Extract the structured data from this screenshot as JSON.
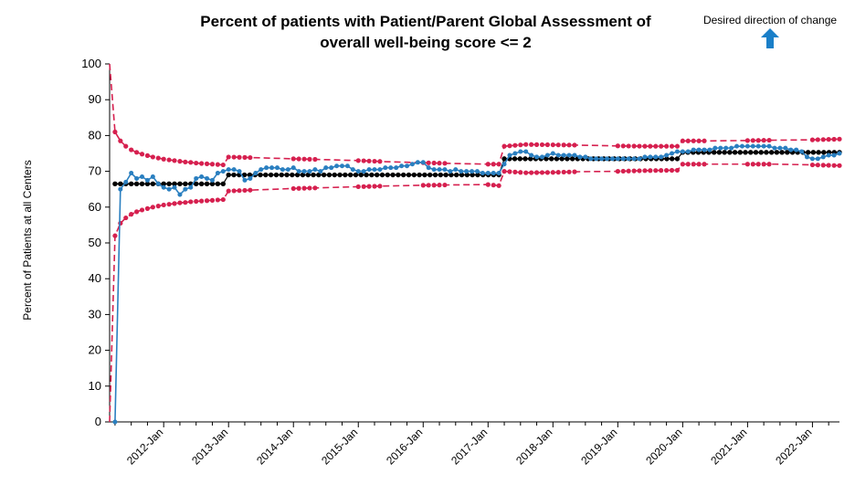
{
  "chart_data": {
    "type": "line",
    "title_lines": [
      "Percent of patients with Patient/Parent Global Assessment of",
      "overall well-being score <= 2"
    ],
    "title": "Percent of patients with Patient/Parent Global Assessment of overall well-being score <= 2",
    "ylabel": "Percent of Patients at all Centers",
    "xlabel": "",
    "ylim": [
      0,
      100
    ],
    "y_ticks": [
      0,
      10,
      20,
      30,
      40,
      50,
      60,
      70,
      80,
      90,
      100
    ],
    "x_range": [
      "2011-03",
      "2022-06"
    ],
    "x_tick_labels": [
      "2012-Jan",
      "2013-Jan",
      "2014-Jan",
      "2015-Jan",
      "2016-Jan",
      "2017-Jan",
      "2018-Jan",
      "2019-Jan",
      "2020-Jan",
      "2021-Jan",
      "2022-Jan"
    ],
    "legend": {
      "direction_text": "Desired direction of change",
      "direction": "up",
      "arrow_color": "#1a7fc8"
    },
    "colors": {
      "observed": "#2a7fc0",
      "center_line": "#000000",
      "limits": "#d6204f"
    },
    "series": [
      {
        "name": "",
        "role": "observed",
        "points": [
          [
            "2011-04",
            0
          ],
          [
            "2011-05",
            65
          ],
          [
            "2011-06",
            67
          ],
          [
            "2011-07",
            69.5
          ],
          [
            "2011-08",
            68
          ],
          [
            "2011-09",
            68.5
          ],
          [
            "2011-10",
            67.5
          ],
          [
            "2011-11",
            68.5
          ],
          [
            "2011-12",
            66.5
          ],
          [
            "2012-01",
            65.5
          ],
          [
            "2012-02",
            65
          ],
          [
            "2012-03",
            65.5
          ],
          [
            "2012-04",
            63.5
          ],
          [
            "2012-05",
            65
          ],
          [
            "2012-06",
            65.5
          ],
          [
            "2012-07",
            68
          ],
          [
            "2012-08",
            68.5
          ],
          [
            "2012-09",
            68
          ],
          [
            "2012-10",
            67.5
          ],
          [
            "2012-11",
            69.5
          ],
          [
            "2012-12",
            70
          ],
          [
            "2013-01",
            70.5
          ],
          [
            "2013-02",
            70.5
          ],
          [
            "2013-03",
            70
          ],
          [
            "2013-04",
            67.5
          ],
          [
            "2013-05",
            68
          ],
          [
            "2013-06",
            69.5
          ],
          [
            "2013-07",
            70.5
          ],
          [
            "2013-08",
            71
          ],
          [
            "2013-09",
            71
          ],
          [
            "2013-10",
            71
          ],
          [
            "2013-11",
            70.5
          ],
          [
            "2013-12",
            70.5
          ],
          [
            "2014-01",
            71
          ],
          [
            "2014-02",
            70
          ],
          [
            "2014-03",
            70
          ],
          [
            "2014-04",
            70
          ],
          [
            "2014-05",
            70.5
          ],
          [
            "2014-06",
            70
          ],
          [
            "2014-07",
            71
          ],
          [
            "2014-08",
            71
          ],
          [
            "2014-09",
            71.5
          ],
          [
            "2014-10",
            71.5
          ],
          [
            "2014-11",
            71.5
          ],
          [
            "2014-12",
            70.5
          ],
          [
            "2015-01",
            70
          ],
          [
            "2015-02",
            70
          ],
          [
            "2015-03",
            70.5
          ],
          [
            "2015-04",
            70.5
          ],
          [
            "2015-05",
            70.5
          ],
          [
            "2015-06",
            71
          ],
          [
            "2015-07",
            71
          ],
          [
            "2015-08",
            71
          ],
          [
            "2015-09",
            71.5
          ],
          [
            "2015-10",
            71.5
          ],
          [
            "2015-11",
            72
          ],
          [
            "2015-12",
            72.5
          ],
          [
            "2016-01",
            72.5
          ],
          [
            "2016-02",
            71
          ],
          [
            "2016-03",
            70.5
          ],
          [
            "2016-04",
            70.5
          ],
          [
            "2016-05",
            70.5
          ],
          [
            "2016-06",
            70
          ],
          [
            "2016-07",
            70.5
          ],
          [
            "2016-08",
            70
          ],
          [
            "2016-09",
            70
          ],
          [
            "2016-10",
            70
          ],
          [
            "2016-11",
            70
          ],
          [
            "2016-12",
            69.5
          ],
          [
            "2017-01",
            69.5
          ],
          [
            "2017-02",
            69.5
          ],
          [
            "2017-03",
            69.5
          ],
          [
            "2017-04",
            72
          ],
          [
            "2017-05",
            74.5
          ],
          [
            "2017-06",
            75
          ],
          [
            "2017-07",
            75.5
          ],
          [
            "2017-08",
            75.5
          ],
          [
            "2017-09",
            74.5
          ],
          [
            "2017-10",
            74
          ],
          [
            "2017-11",
            74
          ],
          [
            "2017-12",
            74.5
          ],
          [
            "2018-01",
            75
          ],
          [
            "2018-02",
            74.5
          ],
          [
            "2018-03",
            74.5
          ],
          [
            "2018-04",
            74.5
          ],
          [
            "2018-05",
            74.5
          ],
          [
            "2018-06",
            74
          ],
          [
            "2018-07",
            74
          ],
          [
            "2018-08",
            73.5
          ],
          [
            "2018-09",
            73.5
          ],
          [
            "2018-10",
            73.5
          ],
          [
            "2018-11",
            73.5
          ],
          [
            "2018-12",
            73.5
          ],
          [
            "2019-01",
            73.5
          ],
          [
            "2019-02",
            73.5
          ],
          [
            "2019-03",
            73.5
          ],
          [
            "2019-04",
            73.5
          ],
          [
            "2019-05",
            73.5
          ],
          [
            "2019-06",
            74
          ],
          [
            "2019-07",
            74
          ],
          [
            "2019-08",
            74
          ],
          [
            "2019-09",
            74
          ],
          [
            "2019-10",
            74.5
          ],
          [
            "2019-11",
            75
          ],
          [
            "2019-12",
            75.5
          ],
          [
            "2020-01",
            75.5
          ],
          [
            "2020-02",
            75.5
          ],
          [
            "2020-03",
            76
          ],
          [
            "2020-04",
            76
          ],
          [
            "2020-05",
            76
          ],
          [
            "2020-06",
            76
          ],
          [
            "2020-07",
            76.5
          ],
          [
            "2020-08",
            76.5
          ],
          [
            "2020-09",
            76.5
          ],
          [
            "2020-10",
            76.5
          ],
          [
            "2020-11",
            77
          ],
          [
            "2020-12",
            77
          ],
          [
            "2021-01",
            77
          ],
          [
            "2021-02",
            77
          ],
          [
            "2021-03",
            77
          ],
          [
            "2021-04",
            77
          ],
          [
            "2021-05",
            77
          ],
          [
            "2021-06",
            76.5
          ],
          [
            "2021-07",
            76.5
          ],
          [
            "2021-08",
            76.5
          ],
          [
            "2021-09",
            76
          ],
          [
            "2021-10",
            76
          ],
          [
            "2021-11",
            75.5
          ],
          [
            "2021-12",
            74
          ],
          [
            "2022-01",
            73.5
          ],
          [
            "2022-02",
            73.5
          ],
          [
            "2022-03",
            74
          ],
          [
            "2022-04",
            74.5
          ],
          [
            "2022-05",
            74.5
          ],
          [
            "2022-06",
            75
          ]
        ]
      },
      {
        "name": "",
        "role": "center_line",
        "segments": [
          {
            "from": "2011-04",
            "to": "2012-12",
            "value": 66.5
          },
          {
            "from": "2013-01",
            "to": "2017-03",
            "value": 69
          },
          {
            "from": "2017-04",
            "to": "2019-12",
            "value": 73.5
          },
          {
            "from": "2020-01",
            "to": "2022-06",
            "value": 75.3
          }
        ]
      },
      {
        "name": "",
        "role": "upper_limit",
        "points": [
          [
            "2011-03",
            100
          ],
          [
            "2011-04",
            81
          ],
          [
            "2011-05",
            78.5
          ],
          [
            "2011-06",
            77
          ],
          [
            "2011-07",
            76
          ],
          [
            "2011-08",
            75.3
          ],
          [
            "2011-09",
            74.8
          ],
          [
            "2011-10",
            74.4
          ],
          [
            "2011-11",
            74
          ],
          [
            "2011-12",
            73.7
          ],
          [
            "2012-01",
            73.4
          ],
          [
            "2012-02",
            73.2
          ],
          [
            "2012-03",
            73
          ],
          [
            "2012-04",
            72.8
          ],
          [
            "2012-05",
            72.6
          ],
          [
            "2012-06",
            72.5
          ],
          [
            "2012-07",
            72.3
          ],
          [
            "2012-08",
            72.2
          ],
          [
            "2012-09",
            72.1
          ],
          [
            "2012-10",
            72
          ],
          [
            "2012-11",
            71.9
          ],
          [
            "2012-12",
            71.8
          ],
          [
            "2013-01",
            74
          ],
          [
            "2013-06",
            73.8
          ],
          [
            "2014-01",
            73.5
          ],
          [
            "2014-06",
            73.3
          ],
          [
            "2015-01",
            73
          ],
          [
            "2015-06",
            72.7
          ],
          [
            "2016-01",
            72.4
          ],
          [
            "2016-06",
            72.2
          ],
          [
            "2017-01",
            72
          ],
          [
            "2017-03",
            72
          ],
          [
            "2017-04",
            77
          ],
          [
            "2017-08",
            77.5
          ],
          [
            "2018-01",
            77.4
          ],
          [
            "2018-06",
            77.3
          ],
          [
            "2019-01",
            77.1
          ],
          [
            "2019-06",
            77
          ],
          [
            "2019-12",
            77
          ],
          [
            "2020-01",
            78.5
          ],
          [
            "2020-06",
            78.5
          ],
          [
            "2021-01",
            78.6
          ],
          [
            "2021-06",
            78.7
          ],
          [
            "2022-01",
            78.8
          ],
          [
            "2022-06",
            79
          ]
        ]
      },
      {
        "name": "",
        "role": "lower_limit",
        "points": [
          [
            "2011-03",
            0
          ],
          [
            "2011-04",
            52
          ],
          [
            "2011-05",
            55.5
          ],
          [
            "2011-06",
            57
          ],
          [
            "2011-07",
            58
          ],
          [
            "2011-08",
            58.7
          ],
          [
            "2011-09",
            59.2
          ],
          [
            "2011-10",
            59.6
          ],
          [
            "2011-11",
            60
          ],
          [
            "2011-12",
            60.3
          ],
          [
            "2012-01",
            60.6
          ],
          [
            "2012-02",
            60.8
          ],
          [
            "2012-03",
            61
          ],
          [
            "2012-04",
            61.2
          ],
          [
            "2012-05",
            61.3
          ],
          [
            "2012-06",
            61.5
          ],
          [
            "2012-07",
            61.6
          ],
          [
            "2012-08",
            61.7
          ],
          [
            "2012-09",
            61.8
          ],
          [
            "2012-10",
            61.9
          ],
          [
            "2012-11",
            62
          ],
          [
            "2012-12",
            62.1
          ],
          [
            "2013-01",
            64.5
          ],
          [
            "2013-06",
            64.8
          ],
          [
            "2014-01",
            65.2
          ],
          [
            "2014-06",
            65.4
          ],
          [
            "2015-01",
            65.7
          ],
          [
            "2015-06",
            65.9
          ],
          [
            "2016-01",
            66.1
          ],
          [
            "2016-06",
            66.2
          ],
          [
            "2017-01",
            66.3
          ],
          [
            "2017-03",
            66
          ],
          [
            "2017-04",
            70
          ],
          [
            "2017-08",
            69.6
          ],
          [
            "2018-01",
            69.7
          ],
          [
            "2018-06",
            69.9
          ],
          [
            "2019-01",
            70
          ],
          [
            "2019-06",
            70.2
          ],
          [
            "2019-12",
            70.3
          ],
          [
            "2020-01",
            72
          ],
          [
            "2020-06",
            72
          ],
          [
            "2021-01",
            72
          ],
          [
            "2021-06",
            72
          ],
          [
            "2022-01",
            71.8
          ],
          [
            "2022-06",
            71.6
          ]
        ]
      }
    ]
  }
}
